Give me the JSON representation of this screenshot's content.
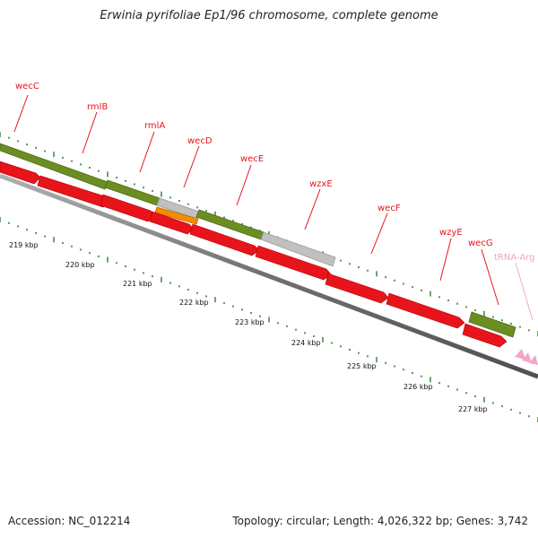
{
  "title": "Erwinia pyrifoliae Ep1/96 chromosome, complete genome",
  "footer": {
    "accession": "Accession: NC_012214",
    "topology": "Topology: circular; Length: 4,026,322 bp; Genes: 3,742"
  },
  "colors": {
    "gene": "#e8141b",
    "gene_light": "#ff6666",
    "cds": "#6b8e23",
    "cds_light": "#a4c247",
    "pseudo": "#c0c0c0",
    "orange": "#f28c00",
    "trna": "#f4a6c8",
    "backbone": "#808080",
    "tick": "#2e7d2e"
  },
  "gene_labels": [
    {
      "text": "wecC",
      "kind": "gene"
    },
    {
      "text": "rmlB",
      "kind": "gene"
    },
    {
      "text": "rmlA",
      "kind": "gene"
    },
    {
      "text": "wecD",
      "kind": "gene"
    },
    {
      "text": "wecE",
      "kind": "gene"
    },
    {
      "text": "wzxE",
      "kind": "gene"
    },
    {
      "text": "wecF",
      "kind": "gene"
    },
    {
      "text": "wzyE",
      "kind": "gene"
    },
    {
      "text": "wecG",
      "kind": "gene"
    },
    {
      "text": "tRNA-Arg",
      "kind": "trna"
    }
  ],
  "kbp_labels": [
    "219 kbp",
    "220 kbp",
    "221 kbp",
    "222 kbp",
    "223 kbp",
    "224 kbp",
    "225 kbp",
    "226 kbp",
    "227 kbp"
  ]
}
